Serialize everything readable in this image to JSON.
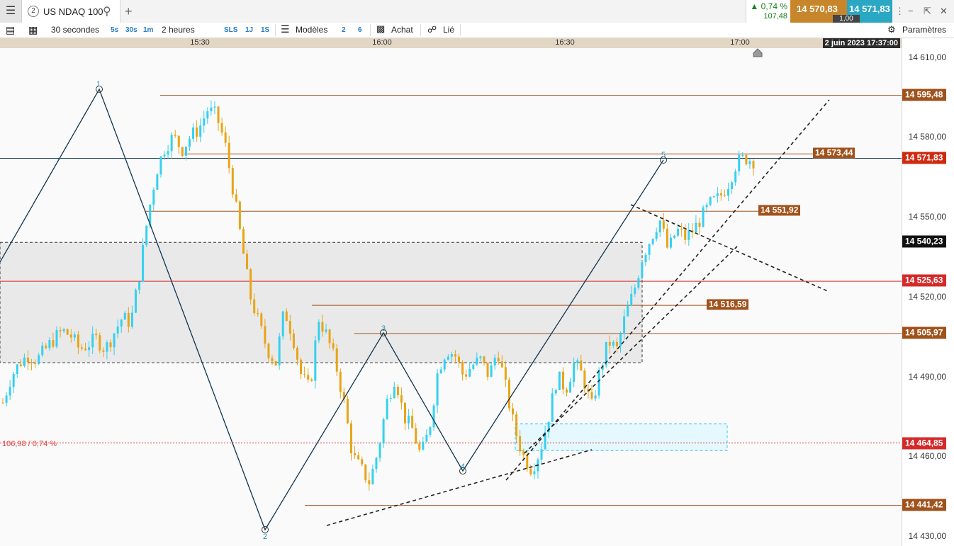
{
  "tab": {
    "number": "2",
    "title": "US NDAQ 100"
  },
  "quote": {
    "change_pct": "0,74 %",
    "change_abs": "107,48",
    "sell": "14 570,83",
    "buy": "14 571,83",
    "spread": "1,00",
    "change_color": "#1a7f1a"
  },
  "toolbar": {
    "interval": "30 secondes",
    "quick_intervals": [
      "5s",
      "30s",
      "1m"
    ],
    "period": "2 heures",
    "quick_periods": [
      "SLS",
      "1J",
      "1S"
    ],
    "models_label": "Modèles",
    "models_counts": [
      "2",
      "6"
    ],
    "buy_label": "Achat",
    "linked_label": "Lié",
    "settings_label": "Paramètres"
  },
  "time_axis": {
    "labels": [
      "15:30",
      "16:00",
      "16:30",
      "17:00"
    ],
    "date": "2 juin 2023 17:37:00"
  },
  "price_axis": {
    "labels": [
      "14 610,00",
      "14 580,00",
      "14 550,00",
      "14 520,00",
      "14 490,00",
      "14 460,00",
      "14 430,00"
    ]
  },
  "price_tags": [
    {
      "text": "14 595,48",
      "color": "#a0521c"
    },
    {
      "text": "14 571,83",
      "color": "#cf2a10"
    },
    {
      "text": "14 540,23",
      "color": "#111111"
    },
    {
      "text": "14 525,63",
      "color": "#d42a2a"
    },
    {
      "text": "14 505,97",
      "color": "#a0521c"
    },
    {
      "text": "14 464,85",
      "color": "#d42a2a"
    },
    {
      "text": "14 441,42",
      "color": "#a0521c"
    }
  ],
  "chart_tags": [
    "14 573,44",
    "14 551,92",
    "14 516,59"
  ],
  "change_note": "106,98 / 0,74 %",
  "waves": [
    "1",
    "2",
    "3",
    "4",
    "5"
  ],
  "colors": {
    "up": "#35d0f0",
    "down": "#e8a417",
    "levels": "#a0521c",
    "current": "#0e3450",
    "red": "#d42a2a",
    "zone": "#e9e9e9"
  },
  "chart_data": {
    "type": "candlestick",
    "instrument": "US NDAQ 100",
    "x_ticks": [
      "15:30",
      "16:00",
      "16:30",
      "17:00"
    ],
    "ylim": [
      14425,
      14615
    ],
    "y_ticks": [
      14430,
      14460,
      14490,
      14520,
      14550,
      14580,
      14610
    ],
    "levels": [
      14595.48,
      14573.44,
      14551.92,
      14516.59,
      14505.97,
      14441.42
    ],
    "current_price": 14571.83,
    "reference_lines": [
      14540.23,
      14525.63,
      14464.85
    ],
    "waves": [
      {
        "label": "1",
        "price": 14596
      },
      {
        "label": "2",
        "price": 14430
      },
      {
        "label": "3",
        "price": 14506
      },
      {
        "label": "4",
        "price": 14455
      },
      {
        "label": "5",
        "price": 14572
      }
    ],
    "close_path": [
      14480,
      14490,
      14495,
      14498,
      14496,
      14500,
      14504,
      14507,
      14505,
      14500,
      14502,
      14504,
      14500,
      14506,
      14512,
      14510,
      14528,
      14550,
      14567,
      14576,
      14580,
      14575,
      14580,
      14583,
      14590,
      14588,
      14578,
      14560,
      14540,
      14520,
      14510,
      14500,
      14495,
      14515,
      14505,
      14490,
      14485,
      14512,
      14505,
      14495,
      14480,
      14460,
      14455,
      14450,
      14462,
      14480,
      14490,
      14475,
      14470,
      14460,
      14470,
      14492,
      14500,
      14498,
      14490,
      14494,
      14496,
      14490,
      14500,
      14485,
      14470,
      14460,
      14455,
      14462,
      14475,
      14490,
      14485,
      14495,
      14490,
      14478,
      14492,
      14503,
      14500,
      14513,
      14522,
      14535,
      14542,
      14549,
      14537,
      14545,
      14542,
      14545,
      14550,
      14555,
      14557,
      14562,
      14570,
      14572,
      14571
    ]
  }
}
